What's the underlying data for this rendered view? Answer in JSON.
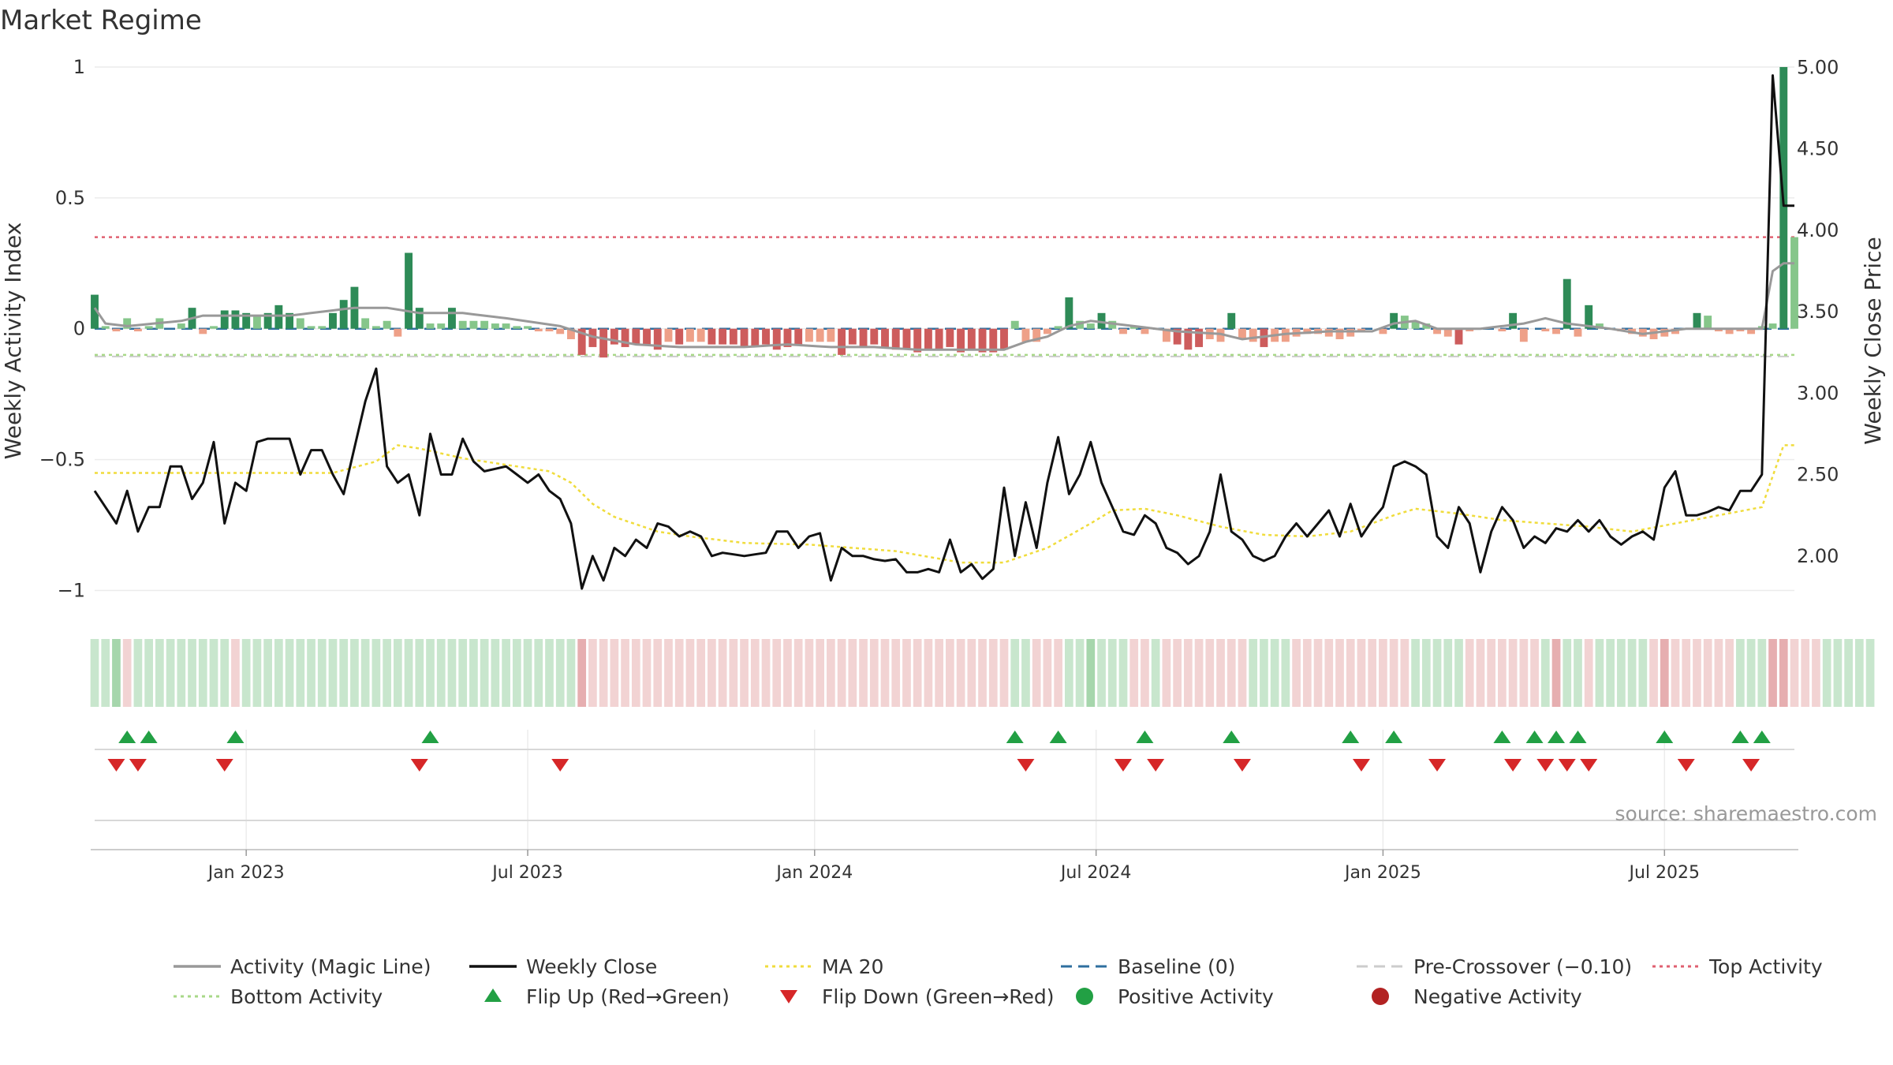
{
  "chart_data": {
    "type": "bar+line",
    "title": "Market Regime",
    "ylabel_left": "Weekly Activity Index",
    "ylabel_right": "Weekly Close Price",
    "ylim_left": [
      -1.08,
      1.03
    ],
    "ylim_right": [
      1.66,
      5.05
    ],
    "yticks_left": [
      {
        "v": 1,
        "label": "1"
      },
      {
        "v": 0.5,
        "label": "0.5"
      },
      {
        "v": 0,
        "label": "0"
      },
      {
        "v": -0.5,
        "label": "−0.5"
      },
      {
        "v": -1,
        "label": "−1"
      }
    ],
    "yticks_right": [
      {
        "v": 5,
        "label": "5.00"
      },
      {
        "v": 4.5,
        "label": "4.50"
      },
      {
        "v": 4,
        "label": "4.00"
      },
      {
        "v": 3.5,
        "label": "3.50"
      },
      {
        "v": 3,
        "label": "3.00"
      },
      {
        "v": 2.5,
        "label": "2.50"
      },
      {
        "v": 2,
        "label": "2.00"
      }
    ],
    "week_start": "2022-10-03",
    "xticks": [
      {
        "label": "Jan 2023",
        "week": 14
      },
      {
        "label": "Jul 2023",
        "week": 40
      },
      {
        "label": "Jan 2024",
        "week": 66.5
      },
      {
        "label": "Jul 2024",
        "week": 92.5
      },
      {
        "label": "Jan 2025",
        "week": 119
      },
      {
        "label": "Jul 2025",
        "week": 145
      }
    ],
    "top_activity": 0.35,
    "bottom_activity": -0.1,
    "baseline": 0,
    "pre_crossover": -0.1,
    "close_anchors": [
      [
        0,
        2.4
      ],
      [
        2,
        2.2
      ],
      [
        3,
        2.4
      ],
      [
        4,
        2.15
      ],
      [
        5,
        2.3
      ],
      [
        6,
        2.3
      ],
      [
        7,
        2.55
      ],
      [
        8,
        2.55
      ],
      [
        9,
        2.35
      ],
      [
        10,
        2.45
      ],
      [
        11,
        2.7
      ],
      [
        12,
        2.2
      ],
      [
        13,
        2.45
      ],
      [
        14,
        2.4
      ],
      [
        15,
        2.7
      ],
      [
        16,
        2.72
      ],
      [
        18,
        2.72
      ],
      [
        19,
        2.5
      ],
      [
        20,
        2.65
      ],
      [
        21,
        2.65
      ],
      [
        22,
        2.5
      ],
      [
        23,
        2.38
      ],
      [
        25,
        2.95
      ],
      [
        26,
        3.15
      ],
      [
        27,
        2.55
      ],
      [
        28,
        2.45
      ],
      [
        29,
        2.5
      ],
      [
        30,
        2.25
      ],
      [
        31,
        2.75
      ],
      [
        32,
        2.5
      ],
      [
        33,
        2.5
      ],
      [
        34,
        2.72
      ],
      [
        35,
        2.58
      ],
      [
        36,
        2.52
      ],
      [
        38,
        2.55
      ],
      [
        40,
        2.45
      ],
      [
        41,
        2.5
      ],
      [
        42,
        2.4
      ],
      [
        43,
        2.35
      ],
      [
        44,
        2.2
      ],
      [
        45,
        1.8
      ],
      [
        46,
        2.0
      ],
      [
        47,
        1.85
      ],
      [
        48,
        2.05
      ],
      [
        49,
        2.0
      ],
      [
        50,
        2.1
      ],
      [
        51,
        2.05
      ],
      [
        52,
        2.2
      ],
      [
        53,
        2.18
      ],
      [
        54,
        2.12
      ],
      [
        55,
        2.15
      ],
      [
        56,
        2.12
      ],
      [
        57,
        2.0
      ],
      [
        58,
        2.02
      ],
      [
        60,
        2.0
      ],
      [
        62,
        2.02
      ],
      [
        63,
        2.15
      ],
      [
        64,
        2.15
      ],
      [
        65,
        2.05
      ],
      [
        66,
        2.12
      ],
      [
        67,
        2.14
      ],
      [
        68,
        1.85
      ],
      [
        69,
        2.05
      ],
      [
        70,
        2.0
      ],
      [
        71,
        2.0
      ],
      [
        72,
        1.98
      ],
      [
        73,
        1.97
      ],
      [
        74,
        1.98
      ],
      [
        75,
        1.9
      ],
      [
        76,
        1.9
      ],
      [
        77,
        1.92
      ],
      [
        78,
        1.9
      ],
      [
        79,
        2.1
      ],
      [
        80,
        1.9
      ],
      [
        81,
        1.95
      ],
      [
        82,
        1.86
      ],
      [
        83,
        1.92
      ],
      [
        84,
        2.42
      ],
      [
        85,
        2.0
      ],
      [
        86,
        2.33
      ],
      [
        87,
        2.05
      ],
      [
        88,
        2.45
      ],
      [
        89,
        2.73
      ],
      [
        90,
        2.38
      ],
      [
        91,
        2.5
      ],
      [
        92,
        2.7
      ],
      [
        93,
        2.45
      ],
      [
        94,
        2.3
      ],
      [
        95,
        2.15
      ],
      [
        96,
        2.13
      ],
      [
        97,
        2.25
      ],
      [
        98,
        2.2
      ],
      [
        99,
        2.05
      ],
      [
        100,
        2.02
      ],
      [
        101,
        1.95
      ],
      [
        102,
        2.0
      ],
      [
        103,
        2.15
      ],
      [
        104,
        2.5
      ],
      [
        105,
        2.15
      ],
      [
        106,
        2.1
      ],
      [
        107,
        2.0
      ],
      [
        108,
        1.97
      ],
      [
        109,
        2.0
      ],
      [
        110,
        2.12
      ],
      [
        111,
        2.2
      ],
      [
        112,
        2.12
      ],
      [
        113,
        2.2
      ],
      [
        114,
        2.28
      ],
      [
        115,
        2.12
      ],
      [
        116,
        2.32
      ],
      [
        117,
        2.12
      ],
      [
        118,
        2.22
      ],
      [
        119,
        2.3
      ],
      [
        120,
        2.55
      ],
      [
        121,
        2.58
      ],
      [
        122,
        2.55
      ],
      [
        123,
        2.5
      ],
      [
        124,
        2.12
      ],
      [
        125,
        2.05
      ],
      [
        126,
        2.3
      ],
      [
        127,
        2.2
      ],
      [
        128,
        1.9
      ],
      [
        129,
        2.15
      ],
      [
        130,
        2.3
      ],
      [
        131,
        2.22
      ],
      [
        132,
        2.05
      ],
      [
        133,
        2.12
      ],
      [
        134,
        2.08
      ],
      [
        135,
        2.17
      ],
      [
        136,
        2.15
      ],
      [
        137,
        2.22
      ],
      [
        138,
        2.15
      ],
      [
        139,
        2.22
      ],
      [
        140,
        2.12
      ],
      [
        141,
        2.07
      ],
      [
        142,
        2.12
      ],
      [
        143,
        2.15
      ],
      [
        144,
        2.1
      ],
      [
        145,
        2.42
      ],
      [
        146,
        2.52
      ],
      [
        147,
        2.25
      ],
      [
        148,
        2.25
      ],
      [
        149,
        2.27
      ],
      [
        150,
        2.3
      ],
      [
        151,
        2.28
      ],
      [
        152,
        2.4
      ],
      [
        153,
        2.4
      ],
      [
        154,
        2.5
      ],
      [
        155,
        4.95
      ],
      [
        156,
        4.15
      ]
    ],
    "ma_anchors": [
      [
        0,
        2.51
      ],
      [
        12,
        2.51
      ],
      [
        22,
        2.51
      ],
      [
        26,
        2.58
      ],
      [
        28,
        2.68
      ],
      [
        30,
        2.66
      ],
      [
        34,
        2.6
      ],
      [
        38,
        2.56
      ],
      [
        42,
        2.52
      ],
      [
        44,
        2.45
      ],
      [
        46,
        2.32
      ],
      [
        48,
        2.24
      ],
      [
        52,
        2.15
      ],
      [
        55,
        2.12
      ],
      [
        60,
        2.08
      ],
      [
        66,
        2.07
      ],
      [
        70,
        2.05
      ],
      [
        74,
        2.03
      ],
      [
        80,
        1.96
      ],
      [
        84,
        1.96
      ],
      [
        88,
        2.05
      ],
      [
        92,
        2.2
      ],
      [
        94,
        2.28
      ],
      [
        97,
        2.29
      ],
      [
        100,
        2.25
      ],
      [
        104,
        2.18
      ],
      [
        108,
        2.13
      ],
      [
        112,
        2.12
      ],
      [
        116,
        2.15
      ],
      [
        120,
        2.25
      ],
      [
        122,
        2.29
      ],
      [
        126,
        2.26
      ],
      [
        130,
        2.22
      ],
      [
        134,
        2.2
      ],
      [
        138,
        2.18
      ],
      [
        142,
        2.15
      ],
      [
        146,
        2.2
      ],
      [
        150,
        2.25
      ],
      [
        154,
        2.3
      ],
      [
        156,
        2.68
      ]
    ],
    "activity_anchors": [
      [
        0,
        0.08
      ],
      [
        1,
        0.02
      ],
      [
        3,
        0.01
      ],
      [
        8,
        0.03
      ],
      [
        10,
        0.05
      ],
      [
        14,
        0.05
      ],
      [
        18,
        0.05
      ],
      [
        24,
        0.08
      ],
      [
        27,
        0.08
      ],
      [
        30,
        0.06
      ],
      [
        34,
        0.06
      ],
      [
        38,
        0.04
      ],
      [
        43,
        0.01
      ],
      [
        46,
        -0.03
      ],
      [
        50,
        -0.06
      ],
      [
        54,
        -0.07
      ],
      [
        60,
        -0.07
      ],
      [
        64,
        -0.06
      ],
      [
        68,
        -0.07
      ],
      [
        72,
        -0.07
      ],
      [
        76,
        -0.08
      ],
      [
        80,
        -0.08
      ],
      [
        84,
        -0.08
      ],
      [
        86,
        -0.05
      ],
      [
        88,
        -0.03
      ],
      [
        90,
        0.01
      ],
      [
        92,
        0.03
      ],
      [
        96,
        0.01
      ],
      [
        100,
        -0.01
      ],
      [
        104,
        -0.02
      ],
      [
        106,
        -0.04
      ],
      [
        110,
        -0.02
      ],
      [
        114,
        -0.01
      ],
      [
        118,
        -0.01
      ],
      [
        120,
        0.02
      ],
      [
        122,
        0.03
      ],
      [
        124,
        0.0
      ],
      [
        128,
        0.0
      ],
      [
        132,
        0.02
      ],
      [
        134,
        0.04
      ],
      [
        136,
        0.02
      ],
      [
        140,
        0.0
      ],
      [
        143,
        -0.02
      ],
      [
        147,
        0.0
      ],
      [
        151,
        0.0
      ],
      [
        154,
        0.0
      ],
      [
        155,
        0.22
      ],
      [
        156,
        0.25
      ]
    ],
    "bars": [
      0.13,
      0.01,
      -0.01,
      0.04,
      -0.01,
      0.01,
      0.04,
      0.0,
      0.02,
      0.08,
      -0.02,
      0.01,
      0.07,
      0.07,
      0.06,
      0.05,
      0.06,
      0.09,
      0.06,
      0.04,
      0.01,
      0.01,
      0.06,
      0.11,
      0.16,
      0.04,
      0.01,
      0.03,
      -0.03,
      0.29,
      0.08,
      0.02,
      0.02,
      0.08,
      0.03,
      0.03,
      0.03,
      0.02,
      0.02,
      0.01,
      0.01,
      -0.01,
      -0.01,
      -0.02,
      -0.04,
      -0.1,
      -0.07,
      -0.11,
      -0.06,
      -0.07,
      -0.06,
      -0.06,
      -0.08,
      -0.05,
      -0.06,
      -0.05,
      -0.05,
      -0.06,
      -0.06,
      -0.06,
      -0.07,
      -0.07,
      -0.06,
      -0.08,
      -0.07,
      -0.06,
      -0.05,
      -0.05,
      -0.05,
      -0.1,
      -0.06,
      -0.07,
      -0.06,
      -0.07,
      -0.08,
      -0.08,
      -0.09,
      -0.08,
      -0.08,
      -0.07,
      -0.09,
      -0.08,
      -0.09,
      -0.09,
      -0.08,
      0.03,
      -0.05,
      -0.05,
      -0.02,
      0.01,
      0.12,
      0.03,
      0.02,
      0.06,
      0.03,
      -0.02,
      0.01,
      -0.02,
      0.0,
      -0.05,
      -0.06,
      -0.08,
      -0.07,
      -0.04,
      -0.05,
      0.06,
      -0.04,
      -0.05,
      -0.07,
      -0.05,
      -0.05,
      -0.03,
      -0.02,
      -0.02,
      -0.03,
      -0.04,
      -0.03,
      -0.01,
      0.0,
      -0.02,
      0.06,
      0.05,
      0.03,
      0.02,
      -0.02,
      -0.03,
      -0.06,
      -0.01,
      0.0,
      0.0,
      -0.01,
      0.06,
      -0.05,
      0.0,
      -0.01,
      -0.02,
      0.19,
      -0.03,
      0.09,
      0.02,
      0.0,
      -0.01,
      -0.02,
      -0.03,
      -0.04,
      -0.03,
      -0.02,
      0.0,
      0.06,
      0.05,
      -0.01,
      -0.02,
      -0.01,
      -0.02,
      0.01,
      0.02,
      1.0,
      0.35
    ],
    "strip": [
      1,
      1,
      1,
      -1,
      1,
      1,
      1,
      1,
      1,
      1,
      1,
      1,
      1,
      -1,
      1,
      1,
      1,
      1,
      1,
      1,
      1,
      1,
      1,
      1,
      1,
      1,
      1,
      1,
      1,
      1,
      1,
      1,
      1,
      1,
      1,
      1,
      1,
      1,
      1,
      1,
      1,
      1,
      1,
      1,
      1,
      -1,
      -1,
      -1,
      -1,
      -1,
      -1,
      -1,
      -1,
      -1,
      -1,
      -1,
      -1,
      -1,
      -1,
      -1,
      -1,
      -1,
      -1,
      -1,
      -1,
      -1,
      -1,
      -1,
      -1,
      -1,
      -1,
      -1,
      -1,
      -1,
      -1,
      -1,
      -1,
      -1,
      -1,
      -1,
      -1,
      -1,
      -1,
      -1,
      -1,
      1,
      1,
      -1,
      -1,
      -1,
      1,
      1,
      1,
      1,
      1,
      1,
      -1,
      -1,
      1,
      -1,
      -1,
      -1,
      -1,
      -1,
      -1,
      -1,
      -1,
      1,
      1,
      1,
      1,
      -1,
      -1,
      -1,
      -1,
      -1,
      -1,
      -1,
      -1,
      -1,
      -1,
      -1,
      1,
      1,
      1,
      1,
      1,
      -1,
      -1,
      -1,
      -1,
      -1,
      -1,
      -1,
      1,
      -1,
      1,
      1,
      -1,
      1,
      1,
      1,
      1,
      1,
      -1,
      -1,
      -1,
      -1,
      -1,
      -1,
      -1,
      -1,
      1,
      1,
      1,
      -1,
      -1,
      -1,
      -1,
      -1,
      1,
      1,
      1,
      1,
      1
    ],
    "strip_strong": [
      2,
      45,
      92,
      135,
      145,
      155,
      156
    ],
    "flip_up": [
      3,
      5,
      13,
      31,
      85,
      89,
      97,
      105,
      116,
      120,
      130,
      133,
      135,
      137,
      145,
      152,
      154
    ],
    "flip_down": [
      2,
      4,
      12,
      30,
      43,
      86,
      95,
      98,
      106,
      117,
      124,
      131,
      134,
      136,
      138,
      147,
      153
    ],
    "source": "source: sharemaestro.com",
    "legend": [
      {
        "label": "Activity (Magic Line)",
        "kind": "line",
        "color": "#999999"
      },
      {
        "label": "Weekly Close",
        "kind": "line",
        "color": "#111111"
      },
      {
        "label": "MA 20",
        "kind": "dotted",
        "color": "#f0dc3c"
      },
      {
        "label": "Baseline (0)",
        "kind": "dashed",
        "color": "#2f6f9f"
      },
      {
        "label": "Pre-Crossover (−0.10)",
        "kind": "dashed",
        "color": "#cccccc"
      },
      {
        "label": "Top Activity",
        "kind": "dotted",
        "color": "#e06070"
      },
      {
        "label": "Bottom Activity",
        "kind": "dotted",
        "color": "#a8d888"
      },
      {
        "label": "Flip Up (Red→Green)",
        "kind": "triangle-up",
        "color": "#22a044"
      },
      {
        "label": "Flip Down (Green→Red)",
        "kind": "triangle-down",
        "color": "#d62728"
      },
      {
        "label": "Positive Activity",
        "kind": "dot",
        "color": "#22a044"
      },
      {
        "label": "Negative Activity",
        "kind": "dot",
        "color": "#b22222"
      }
    ],
    "colors": {
      "pos_strong": "#2e8b57",
      "pos_light": "#86c68a",
      "neg_strong": "#cd5c5c",
      "neg_light": "#eea088",
      "strip_green": "#c8e6cd",
      "strip_red": "#f2d3d3",
      "strip_green_strong": "#3a9a4a",
      "strip_red_strong": "#c84848",
      "marker_up": "#22a044",
      "marker_down": "#d62728"
    }
  }
}
